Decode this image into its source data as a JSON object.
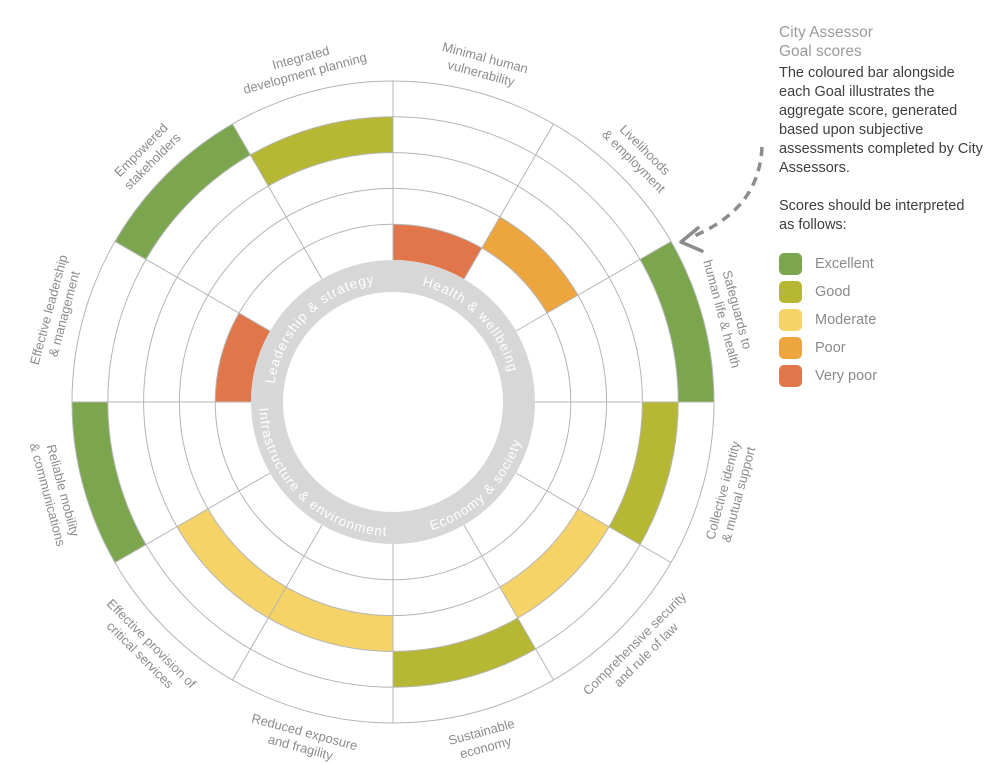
{
  "legend_panel": {
    "title_line1": "City Assessor",
    "title_line2": "Goal scores",
    "description": "The coloured bar alongside each Goal illustrates the aggregate score, generated based upon subjective assessments completed by City Assessors.",
    "interpretation_intro": "Scores should be interpreted as follows:",
    "scale": [
      {
        "label": "Excellent",
        "color": "#7CA64E"
      },
      {
        "label": "Good",
        "color": "#B6B733"
      },
      {
        "label": "Moderate",
        "color": "#F6D367"
      },
      {
        "label": "Poor",
        "color": "#EDA53E"
      },
      {
        "label": "Very poor",
        "color": "#E1764B"
      }
    ]
  },
  "chart_data": {
    "type": "radial-score-wheel",
    "description": "12 goals arranged clockwise from 12 o'clock; each goal's coloured wedge sits in the radial band matching its score (innermost band = Very poor, outermost band = Excellent).",
    "score_levels": [
      "Very poor",
      "Poor",
      "Moderate",
      "Good",
      "Excellent"
    ],
    "categories": [
      "Health & wellbeing",
      "Economy & society",
      "Infrastructure & environment",
      "Leadership & strategy"
    ],
    "goals": [
      {
        "label": [
          "Minimal human",
          "vulnerability"
        ],
        "category": "Health & wellbeing",
        "score": "Very poor"
      },
      {
        "label": [
          "Livelihoods",
          "& employment"
        ],
        "category": "Health & wellbeing",
        "score": "Poor"
      },
      {
        "label": [
          "Safeguards to",
          "human life & health"
        ],
        "category": "Health & wellbeing",
        "score": "Excellent"
      },
      {
        "label": [
          "Collective identity",
          "& mutual support"
        ],
        "category": "Economy & society",
        "score": "Good"
      },
      {
        "label": [
          "Comprehensive security",
          "and rule of law"
        ],
        "category": "Economy & society",
        "score": "Moderate"
      },
      {
        "label": [
          "Sustainable",
          "economy"
        ],
        "category": "Economy & society",
        "score": "Good"
      },
      {
        "label": [
          "Reduced exposure",
          "and fragility"
        ],
        "category": "Infrastructure & environment",
        "score": "Moderate"
      },
      {
        "label": [
          "Effective provision of",
          "critical services"
        ],
        "category": "Infrastructure & environment",
        "score": "Moderate"
      },
      {
        "label": [
          "Reliable mobility",
          "& communications"
        ],
        "category": "Infrastructure & environment",
        "score": "Excellent"
      },
      {
        "label": [
          "Effective leadership",
          "& management"
        ],
        "category": "Leadership & strategy",
        "score": "Very poor"
      },
      {
        "label": [
          "Empowered",
          "stakeholders"
        ],
        "category": "Leadership & strategy",
        "score": "Excellent"
      },
      {
        "label": [
          "Integrated",
          "development planning"
        ],
        "category": "Leadership & strategy",
        "score": "Good"
      }
    ],
    "ring_color": "#D7D7D8",
    "ring_label_color": "#ffffff",
    "grid_color": "#B5B5B5",
    "goal_label_color": "#8C8C8C",
    "legend_position": "top-right",
    "grid": true
  }
}
